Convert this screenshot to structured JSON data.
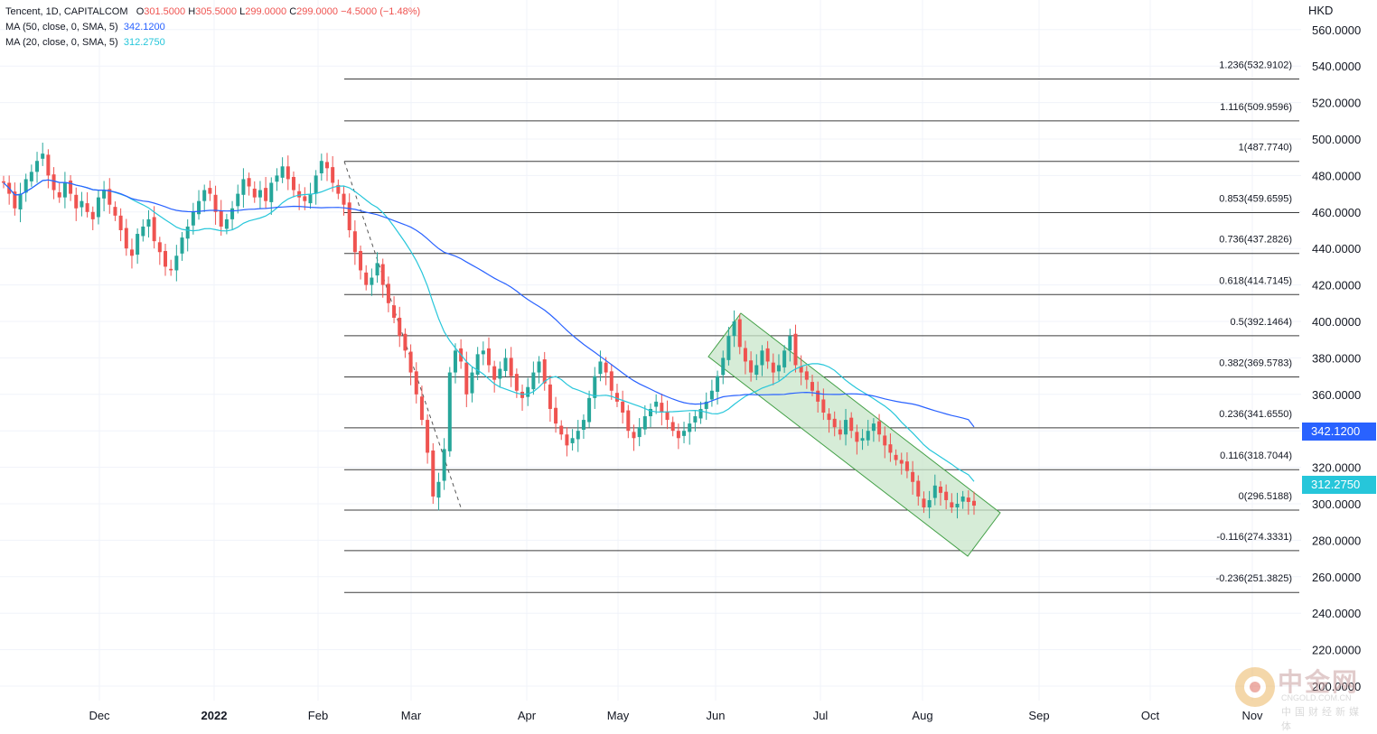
{
  "legend": {
    "symbol": "Tencent, 1D, CAPITALCOM",
    "o_label": "O",
    "o_value": "301.5000",
    "h_label": "H",
    "h_value": "305.5000",
    "l_label": "L",
    "l_value": "299.0000",
    "c_label": "C",
    "c_value": "299.0000",
    "change": "−4.5000 (−1.48%)",
    "ma50_label": "MA (50, close, 0, SMA, 5)",
    "ma50_value": "342.1200",
    "ma20_label": "MA (20, close, 0, SMA, 5)",
    "ma20_value": "312.2750"
  },
  "axis": {
    "currency": "HKD",
    "price_ticks": [
      "560.0000",
      "540.0000",
      "520.0000",
      "500.0000",
      "480.0000",
      "460.0000",
      "440.0000",
      "420.0000",
      "400.0000",
      "380.0000",
      "360.0000",
      "340.0000",
      "320.0000",
      "300.0000",
      "280.0000",
      "260.0000",
      "240.0000",
      "220.0000",
      "200.0000"
    ],
    "time_ticks": [
      "Dec",
      "2022",
      "Feb",
      "Mar",
      "Apr",
      "May",
      "Jun",
      "Jul",
      "Aug",
      "Sep",
      "Oct",
      "Nov"
    ]
  },
  "badges": {
    "ma50": "342.1200",
    "ma20": "312.2750"
  },
  "colors": {
    "up": "#26a69a",
    "down": "#ef5350",
    "ma50": "#2962ff",
    "ma20": "#26c6da",
    "fib_line": "#3d3d3d",
    "channel_fill": "#c8e6c9",
    "channel_stroke": "#43a047"
  },
  "chart_data": {
    "type": "candlestick",
    "title": "Tencent, 1D, CAPITALCOM",
    "ylabel": "HKD",
    "ylim": [
      200,
      570
    ],
    "fib_levels": [
      {
        "ratio": "1.236",
        "value": 532.9102
      },
      {
        "ratio": "1.116",
        "value": 509.9596
      },
      {
        "ratio": "1",
        "value": 487.774
      },
      {
        "ratio": "0.853",
        "value": 459.6595
      },
      {
        "ratio": "0.736",
        "value": 437.2826
      },
      {
        "ratio": "0.618",
        "value": 414.7145
      },
      {
        "ratio": "0.5",
        "value": 392.1464
      },
      {
        "ratio": "0.382",
        "value": 369.5783
      },
      {
        "ratio": "0.236",
        "value": 341.655
      },
      {
        "ratio": "0.116",
        "value": 318.7044
      },
      {
        "ratio": "0",
        "value": 296.5188
      },
      {
        "ratio": "-0.116",
        "value": 274.3331
      },
      {
        "ratio": "-0.236",
        "value": 251.3825
      }
    ],
    "ma50_last": 342.12,
    "ma20_last": 312.275,
    "close_series": [
      476,
      470,
      462,
      470,
      478,
      482,
      488,
      492,
      480,
      472,
      468,
      476,
      470,
      462,
      466,
      460,
      456,
      468,
      472,
      464,
      458,
      450,
      440,
      436,
      448,
      452,
      456,
      444,
      438,
      430,
      428,
      436,
      446,
      452,
      460,
      466,
      472,
      470,
      460,
      452,
      456,
      462,
      470,
      478,
      474,
      468,
      472,
      466,
      476,
      480,
      485,
      478,
      472,
      468,
      466,
      470,
      480,
      488,
      484,
      476,
      470,
      464,
      450,
      438,
      428,
      420,
      424,
      432,
      420,
      410,
      402,
      392,
      384,
      372,
      360,
      346,
      328,
      304,
      312,
      330,
      372,
      384,
      378,
      360,
      372,
      382,
      384,
      376,
      368,
      374,
      380,
      370,
      362,
      358,
      364,
      372,
      378,
      366,
      352,
      344,
      338,
      332,
      336,
      340,
      346,
      358,
      370,
      378,
      372,
      362,
      356,
      350,
      340,
      336,
      342,
      348,
      352,
      356,
      350,
      346,
      340,
      336,
      340,
      344,
      348,
      352,
      356,
      362,
      370,
      380,
      392,
      400,
      386,
      378,
      372,
      376,
      384,
      378,
      372,
      376,
      384,
      392,
      376,
      372,
      368,
      362,
      356,
      350,
      346,
      342,
      338,
      346,
      340,
      334,
      336,
      340,
      344,
      338,
      332,
      328,
      324,
      322,
      318,
      312,
      304,
      298,
      302,
      310,
      306,
      302,
      298,
      300,
      304,
      301,
      299
    ],
    "annotations": [
      "Fibonacci extension",
      "Descending channel"
    ]
  }
}
